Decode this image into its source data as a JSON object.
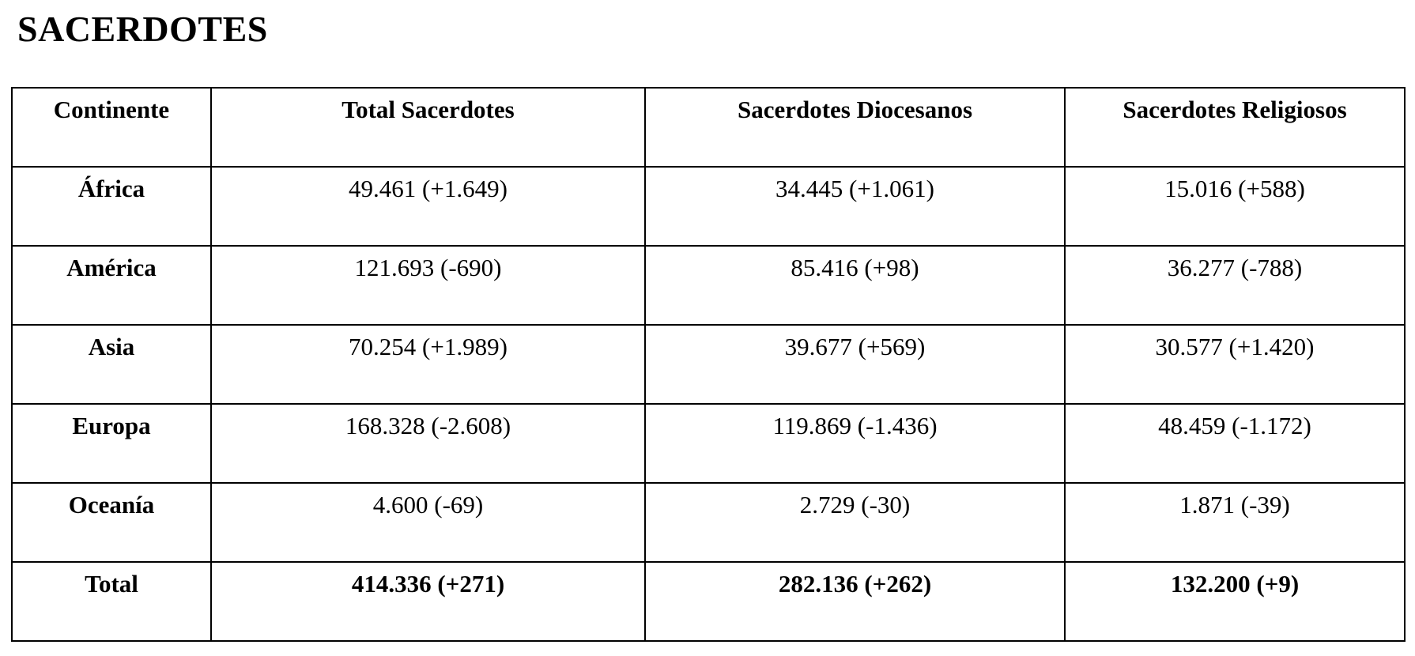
{
  "page": {
    "title": "SACERDOTES"
  },
  "table": {
    "headers": [
      "Continente",
      "Total Sacerdotes",
      "Sacerdotes Diocesanos",
      "Sacerdotes Religiosos"
    ],
    "rows": [
      [
        "África",
        "49.461 (+1.649)",
        "34.445 (+1.061)",
        "15.016 (+588)"
      ],
      [
        "América",
        "121.693 (-690)",
        "85.416 (+98)",
        "36.277 (-788)"
      ],
      [
        "Asia",
        "70.254 (+1.989)",
        "39.677 (+569)",
        "30.577 (+1.420)"
      ],
      [
        "Europa",
        "168.328 (-2.608)",
        "119.869 (-1.436)",
        "48.459 (-1.172)"
      ],
      [
        "Oceanía",
        "4.600 (-69)",
        "2.729 (-30)",
        "1.871 (-39)"
      ],
      [
        "Total",
        "414.336 (+271)",
        "282.136 (+262)",
        "132.200 (+9)"
      ]
    ]
  },
  "colors": {
    "background": "#ffffff",
    "border": "#000000",
    "text": "#000000"
  }
}
